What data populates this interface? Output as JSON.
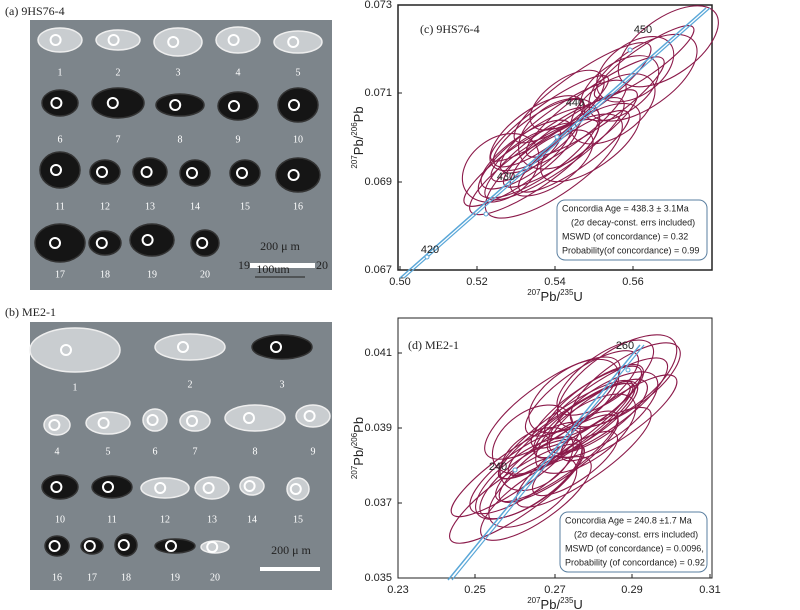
{
  "zircon_a": {
    "label": "(a) 9HS76-4",
    "grains": [
      "1",
      "2",
      "3",
      "4",
      "5",
      "6",
      "7",
      "8",
      "9",
      "10",
      "11",
      "12",
      "13",
      "14",
      "15",
      "16",
      "17",
      "18",
      "19",
      "20"
    ],
    "scale": "200 μ m",
    "overlay": [
      "19",
      "100um",
      "20"
    ]
  },
  "zircon_b": {
    "label": "(b) ME2-1",
    "grains": [
      "1",
      "2",
      "3",
      "4",
      "5",
      "6",
      "7",
      "8",
      "9",
      "10",
      "11",
      "12",
      "13",
      "14",
      "15",
      "16",
      "17",
      "18",
      "19",
      "20"
    ],
    "scale": "200 μ m"
  },
  "concordia_c": {
    "label": "(c) 9HS76-4",
    "xticks": [
      "0.50",
      "0.52",
      "0.54",
      "0.56"
    ],
    "yticks": [
      "0.073",
      "0.071",
      "0.069",
      "0.067"
    ],
    "xlabel": [
      "207",
      "Pb/",
      "235",
      "U"
    ],
    "ylabel": [
      "207",
      "Pb/",
      "206",
      "Pb"
    ],
    "ages": [
      "420",
      "430",
      "440",
      "450"
    ],
    "info": [
      "Concordia Age = 438.3 ± 3.1Ma",
      "(2σ decay-const. errs included)",
      "MSWD (of concordance) = 0.32",
      "Probability(of concordance) = 0.99"
    ]
  },
  "concordia_d": {
    "label": "(d) ME2-1",
    "xticks": [
      "0.23",
      "0.25",
      "0.27",
      "0.29",
      "0.31"
    ],
    "yticks": [
      "0.041",
      "0.039",
      "0.037",
      "0.035"
    ],
    "xlabel": [
      "207",
      "Pb/",
      "235",
      "U"
    ],
    "ylabel": [
      "207",
      "Pb/",
      "206",
      "Pb"
    ],
    "ages": [
      "260",
      "240"
    ],
    "info": [
      "Concordia Age = 240.8 ±1.7 Ma",
      "(2σ decay-const. errs included)",
      "MSWD (of concordance) = 0.0096,",
      "Probability (of concordance) = 0.92"
    ]
  }
}
